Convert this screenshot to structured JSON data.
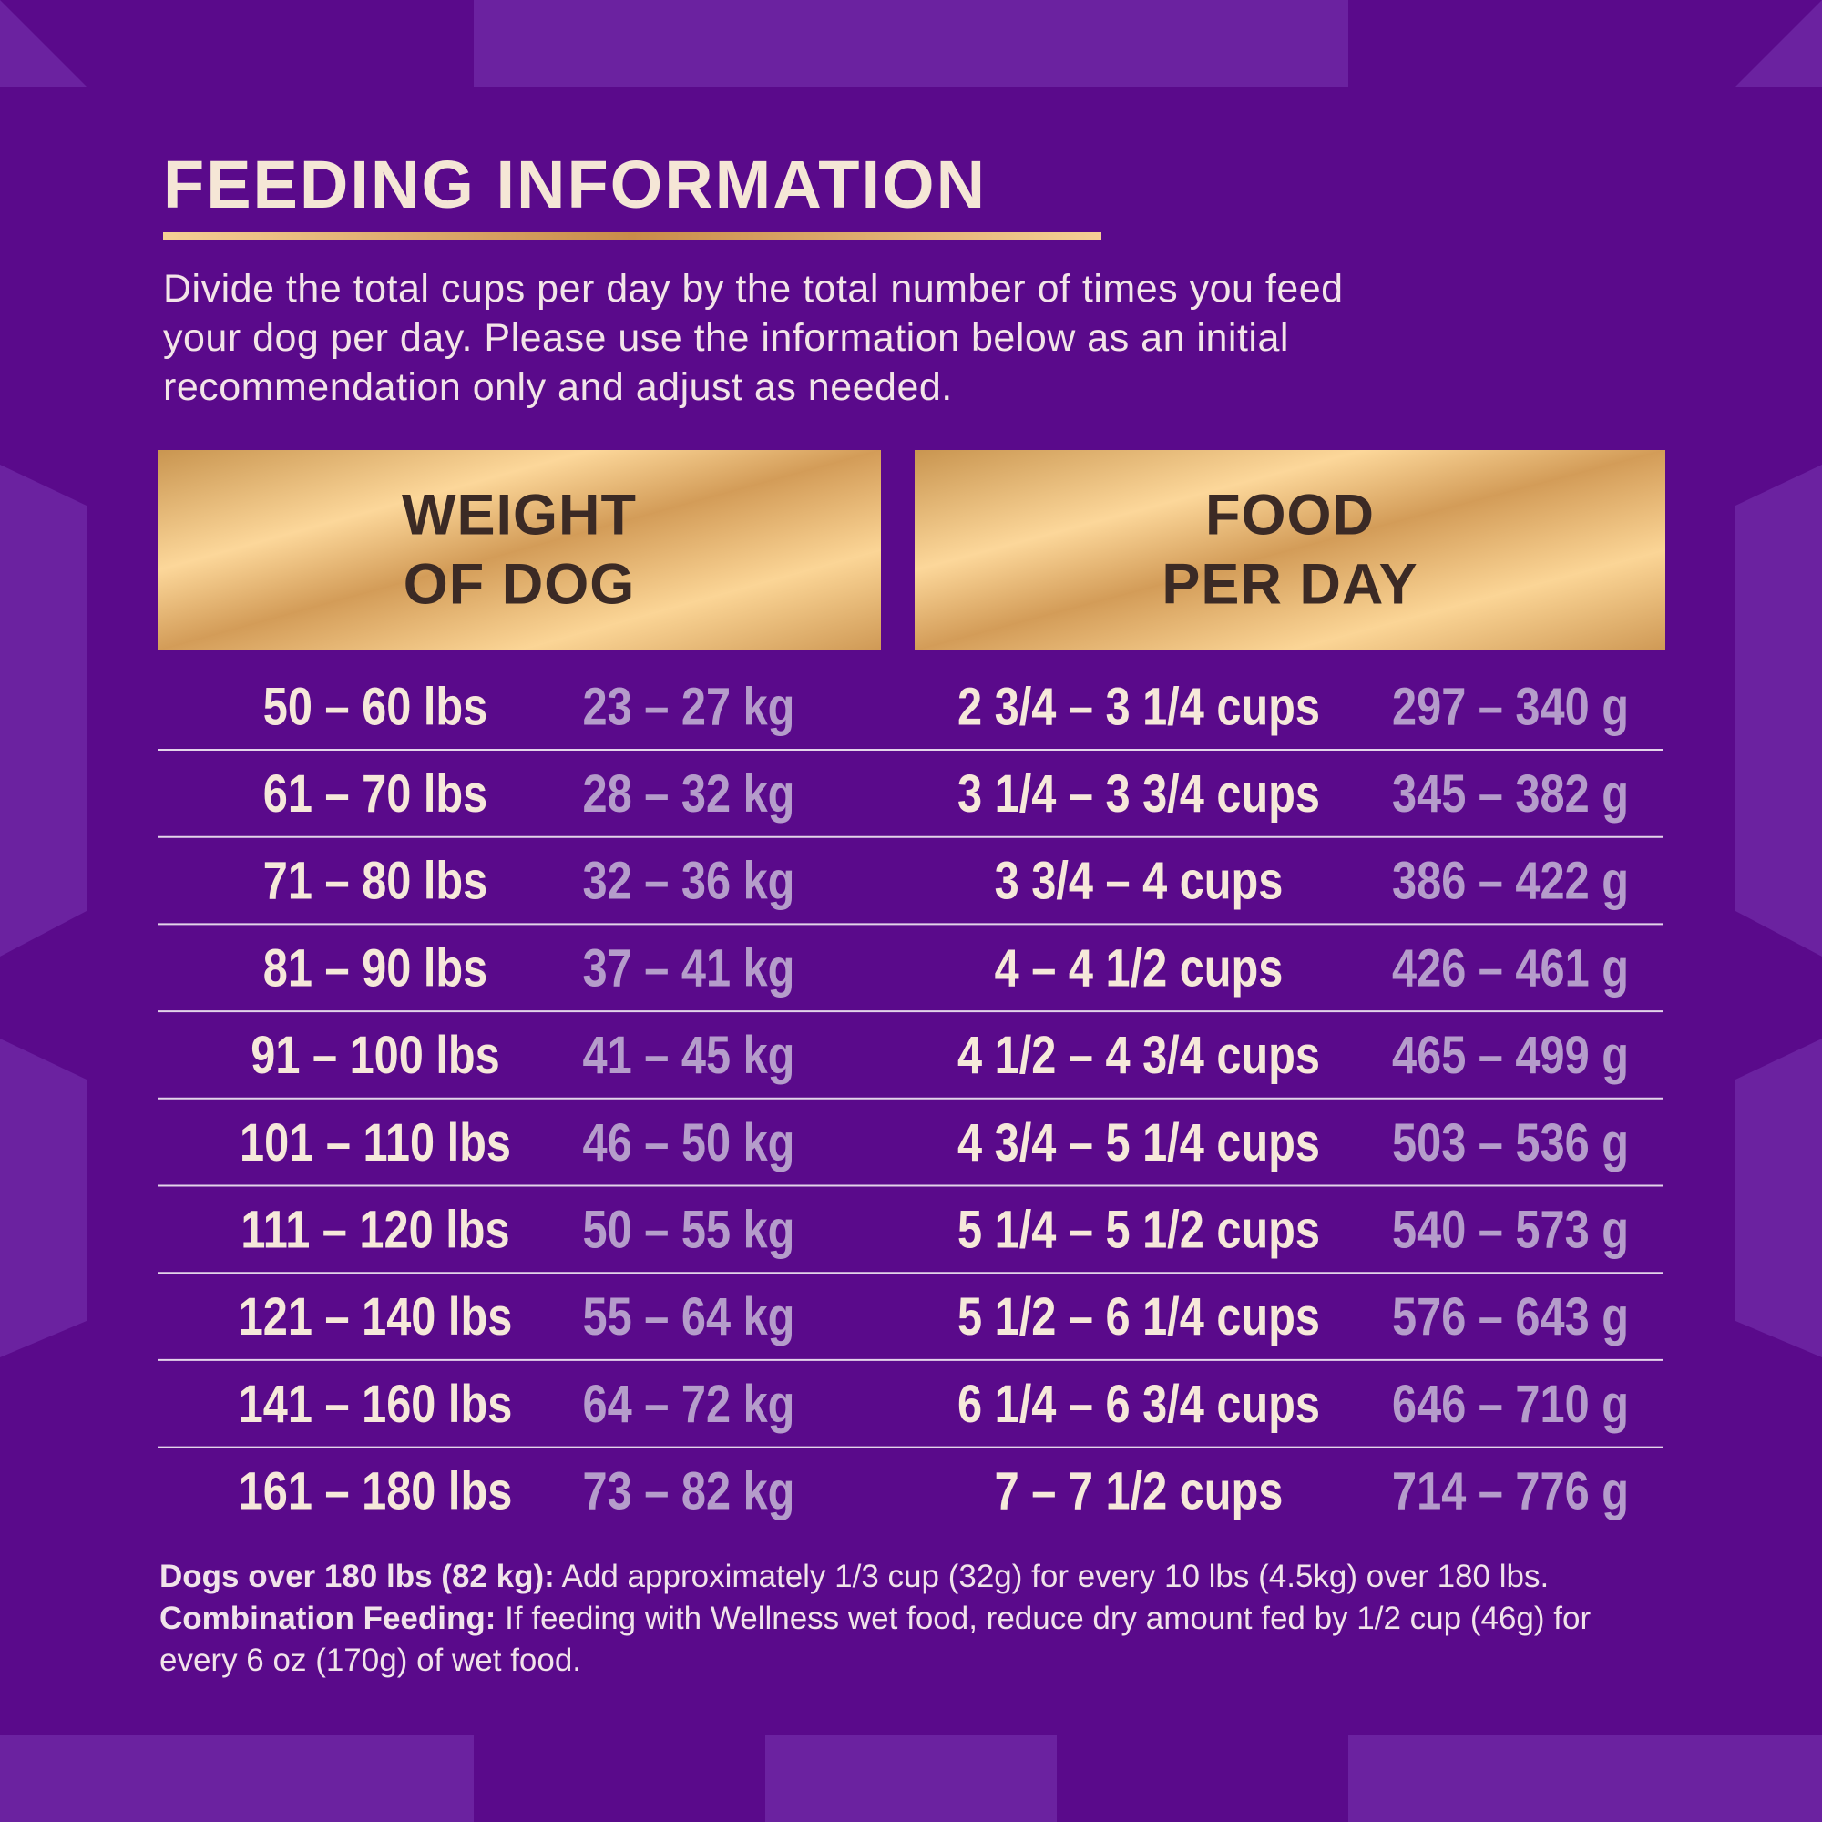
{
  "title": "FEEDING INFORMATION",
  "intro": [
    "Divide the total cups per day by the total number of times you feed",
    "your dog per day. Please use the information below as an initial",
    "recommendation only and adjust as needed."
  ],
  "table": {
    "headers": [
      [
        "WEIGHT",
        "OF DOG"
      ],
      [
        "FOOD",
        "PER DAY"
      ]
    ],
    "rows": [
      [
        "50 – 60 lbs",
        "23 – 27 kg",
        "2 3/4 – 3 1/4 cups",
        "297 – 340 g"
      ],
      [
        "61 – 70 lbs",
        "28 – 32 kg",
        "3 1/4 – 3 3/4 cups",
        "345 – 382 g"
      ],
      [
        "71 – 80 lbs",
        "32 – 36 kg",
        "3 3/4 – 4 cups",
        "386 – 422 g"
      ],
      [
        "81 – 90 lbs",
        "37 – 41 kg",
        "4 – 4 1/2 cups",
        "426 – 461 g"
      ],
      [
        "91 – 100 lbs",
        "41 – 45 kg",
        "4 1/2 – 4 3/4 cups",
        "465 – 499 g"
      ],
      [
        "101 – 110 lbs",
        "46 – 50 kg",
        "4 3/4 – 5 1/4 cups",
        "503 – 536 g"
      ],
      [
        "111 – 120 lbs",
        "50 – 55 kg",
        "5 1/4 – 5 1/2 cups",
        "540 – 573 g"
      ],
      [
        "121 – 140 lbs",
        "55 – 64 kg",
        "5 1/2 – 6 1/4 cups",
        "576 – 643 g"
      ],
      [
        "141 – 160 lbs",
        "64 – 72 kg",
        "6 1/4 – 6 3/4 cups",
        "646 – 710 g"
      ],
      [
        "161 – 180 lbs",
        "73 – 82 kg",
        "7 – 7 1/2 cups",
        "714 – 776 g"
      ]
    ]
  },
  "footnote": [
    {
      "text": "Dogs over 180 lbs (82 kg):",
      "bold": true
    },
    {
      "text": " Add approximately 1/3 cup (32g) for every 10 lbs (4.5kg) over 180 lbs. ",
      "bold": false
    },
    {
      "text": "Combination Feeding:",
      "bold": true
    },
    {
      "text": " If feeding with Wellness wet food, reduce dry amount fed by 1/2 cup (46g) for every 6 oz (170g) of wet food.",
      "bold": false
    }
  ]
}
